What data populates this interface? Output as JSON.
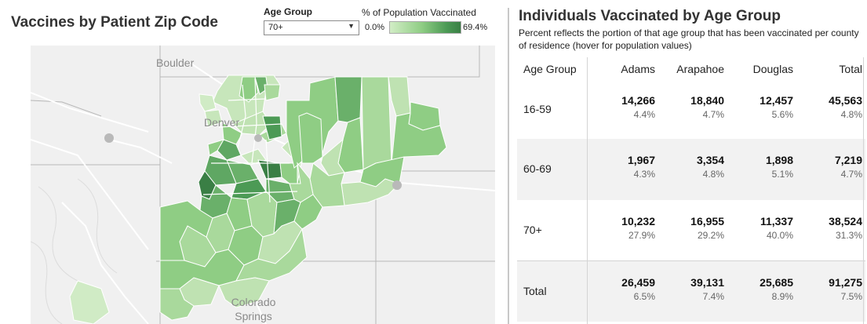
{
  "left": {
    "title": "Vaccines by Patient Zip Code",
    "filter": {
      "label": "Age Group",
      "selected": "70+"
    },
    "legend": {
      "title": "% of Population Vaccinated",
      "min": "0.0%",
      "max": "69.4%",
      "colors": [
        "#d2edc6",
        "#8fcd84",
        "#4c9a55",
        "#3a7f45"
      ]
    },
    "map": {
      "labels": {
        "boulder": "Boulder",
        "denver": "Denver",
        "colorado_springs_line1": "Colorado",
        "colorado_springs_line2": "Springs"
      }
    }
  },
  "right": {
    "title": "Individuals Vaccinated by Age Group",
    "subtitle": "Percent reflects the portion of that age group that has been vaccinated per county of residence (hover for population values)",
    "columns": [
      "Age Group",
      "Adams",
      "Arapahoe",
      "Douglas",
      "Total"
    ],
    "rows": [
      {
        "label": "16-59",
        "cells": [
          {
            "n": "14,266",
            "p": "4.4%"
          },
          {
            "n": "18,840",
            "p": "4.7%"
          },
          {
            "n": "12,457",
            "p": "5.6%"
          },
          {
            "n": "45,563",
            "p": "4.8%"
          }
        ]
      },
      {
        "label": "60-69",
        "cells": [
          {
            "n": "1,967",
            "p": "4.3%"
          },
          {
            "n": "3,354",
            "p": "4.8%"
          },
          {
            "n": "1,898",
            "p": "5.1%"
          },
          {
            "n": "7,219",
            "p": "4.7%"
          }
        ]
      },
      {
        "label": "70+",
        "cells": [
          {
            "n": "10,232",
            "p": "27.9%"
          },
          {
            "n": "16,955",
            "p": "29.2%"
          },
          {
            "n": "11,337",
            "p": "40.0%"
          },
          {
            "n": "38,524",
            "p": "31.3%"
          }
        ]
      },
      {
        "label": "Total",
        "cells": [
          {
            "n": "26,459",
            "p": "6.5%"
          },
          {
            "n": "39,131",
            "p": "7.4%"
          },
          {
            "n": "25,685",
            "p": "8.9%"
          },
          {
            "n": "91,275",
            "p": "7.5%"
          }
        ]
      }
    ]
  }
}
